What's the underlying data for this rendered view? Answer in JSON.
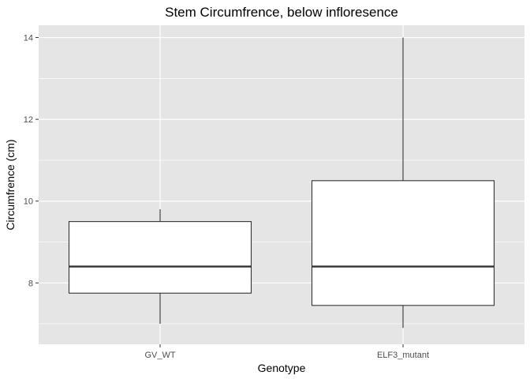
{
  "chart_data": {
    "type": "boxplot",
    "title": "Stem Circumfrence, below infloresence",
    "xlabel": "Genotype",
    "ylabel": "Circumfrence (cm)",
    "ylim": [
      6.5,
      14.3
    ],
    "y_ticks": [
      8,
      10,
      12,
      14
    ],
    "categories": [
      "GV_WT",
      "ELF3_mutant"
    ],
    "boxes": [
      {
        "category": "GV_WT",
        "min": 7.0,
        "q1": 7.75,
        "median": 8.4,
        "q3": 9.5,
        "max": 9.8
      },
      {
        "category": "ELF3_mutant",
        "min": 6.9,
        "q1": 7.45,
        "median": 8.4,
        "q3": 10.5,
        "max": 14.0
      }
    ],
    "grid": true,
    "colors": {
      "panel": "#e5e5e5",
      "grid": "#ffffff",
      "box_fill": "#ffffff",
      "box_stroke": "#333333"
    }
  }
}
